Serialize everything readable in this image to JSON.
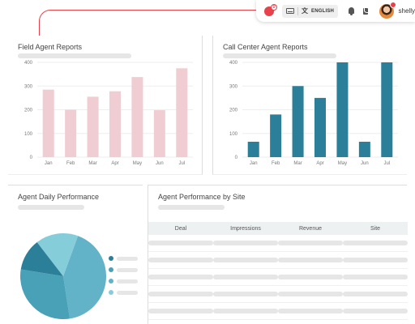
{
  "topbar": {
    "notification_count": "0",
    "language": "ENGLISH",
    "username": "shelly"
  },
  "field_agent": {
    "title": "Field Agent Reports",
    "chart_data": {
      "type": "bar",
      "categories": [
        "Jan",
        "Feb",
        "Mar",
        "Apr",
        "May",
        "Jun",
        "Jul"
      ],
      "values": [
        285,
        200,
        255,
        278,
        338,
        198,
        375
      ],
      "y_ticks": [
        "0",
        "100",
        "200",
        "300",
        "400"
      ],
      "ylim": [
        0,
        400
      ],
      "grid": true,
      "color": "#f0cdd3"
    }
  },
  "call_center": {
    "title": "Call Center Agent Reports",
    "chart_data": {
      "type": "bar",
      "categories": [
        "Jan",
        "Feb",
        "Mar",
        "Apr",
        "May",
        "Jun",
        "Jul"
      ],
      "values": [
        65,
        180,
        300,
        250,
        400,
        65,
        400
      ],
      "y_ticks": [
        "0",
        "100",
        "200",
        "300",
        "400"
      ],
      "ylim": [
        0,
        400
      ],
      "grid": true,
      "color": "#2b7f98"
    }
  },
  "daily": {
    "title": "Agent Daily Performance",
    "chart_data": {
      "type": "pie",
      "values": [
        42,
        30,
        12,
        16
      ],
      "colors": [
        "#62b2c8",
        "#48a1b6",
        "#2b7f98",
        "#86cdda"
      ],
      "legend_colors": [
        "#2b7f98",
        "#48a1b6",
        "#62b2c8",
        "#86cdda"
      ]
    }
  },
  "site": {
    "title": "Agent Performance by Site",
    "columns": [
      "Deal",
      "Impressions",
      "Revenue",
      "Site"
    ],
    "row_count": 6
  }
}
